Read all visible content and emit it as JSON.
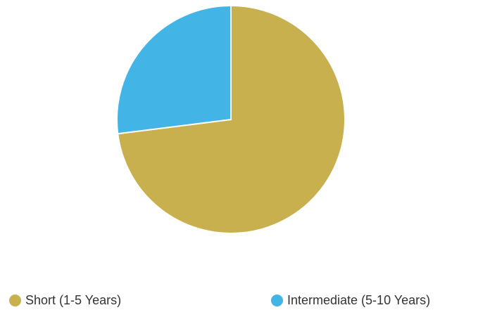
{
  "chart_data": {
    "type": "pie",
    "title": "",
    "slices": [
      {
        "label": "Short (1-5 Years)",
        "value": 73,
        "color": "#C9B04E"
      },
      {
        "label": "Intermediate (5-10 Years)",
        "value": 27,
        "color": "#42B4E6"
      }
    ],
    "legend_position": "bottom",
    "slice_border_color": "#FFFFFF"
  }
}
